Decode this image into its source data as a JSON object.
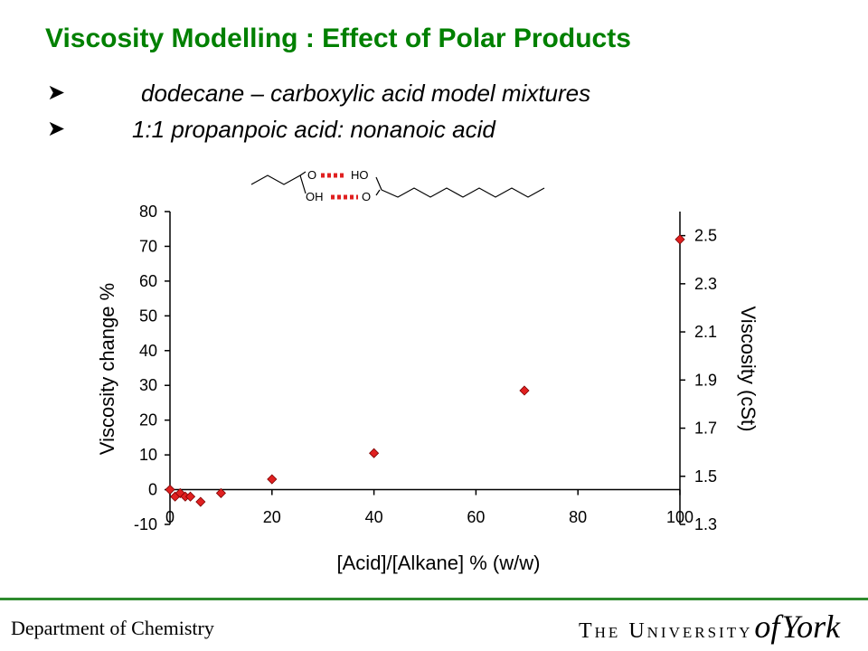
{
  "slide": {
    "title": "Viscosity Modelling : Effect of Polar Products",
    "bullets": [
      {
        "icon": "arrow-bullet-icon",
        "text": "dodecane – carboxylic acid model mixtures"
      },
      {
        "icon": "arrow-bullet-icon",
        "text": "1:1 propanpoic acid: nonanoic acid"
      }
    ]
  },
  "molecule": {
    "labels": [
      "O",
      "HO",
      "OH",
      "O"
    ],
    "hbond_color": "#e02020"
  },
  "chart_data": {
    "type": "scatter",
    "xlabel": "[Acid]/[Alkane] % (w/w)",
    "ylabel": "Viscosity change %",
    "y2label": "Viscosity (cSt)",
    "xlim": [
      0,
      100
    ],
    "ylim": [
      -10,
      80
    ],
    "y2lim": [
      1.3,
      2.6
    ],
    "xticks": [
      0,
      20,
      40,
      60,
      80,
      100
    ],
    "yticks": [
      -10,
      0,
      10,
      20,
      30,
      40,
      50,
      60,
      70,
      80
    ],
    "y2ticks": [
      1.3,
      1.5,
      1.7,
      1.9,
      2.1,
      2.3,
      2.5
    ],
    "y2tick_labels": [
      "1.3",
      "1.5",
      "1.7",
      "1.9",
      "2.1",
      "2.3",
      "2.5"
    ],
    "grid": false,
    "marker_color": "#e02020",
    "series": [
      {
        "x": [
          0,
          1,
          2,
          3,
          4,
          6,
          10,
          20,
          40,
          69.5,
          100
        ],
        "y": [
          0,
          -2,
          -1,
          -2,
          -2,
          -3.5,
          -1,
          3,
          10.5,
          28.5,
          72
        ]
      }
    ]
  },
  "footer": {
    "department": "Department of Chemistry",
    "university_prefix": "The University",
    "university_of": "of",
    "university_name": "York",
    "line_color": "#2e8b2e"
  }
}
